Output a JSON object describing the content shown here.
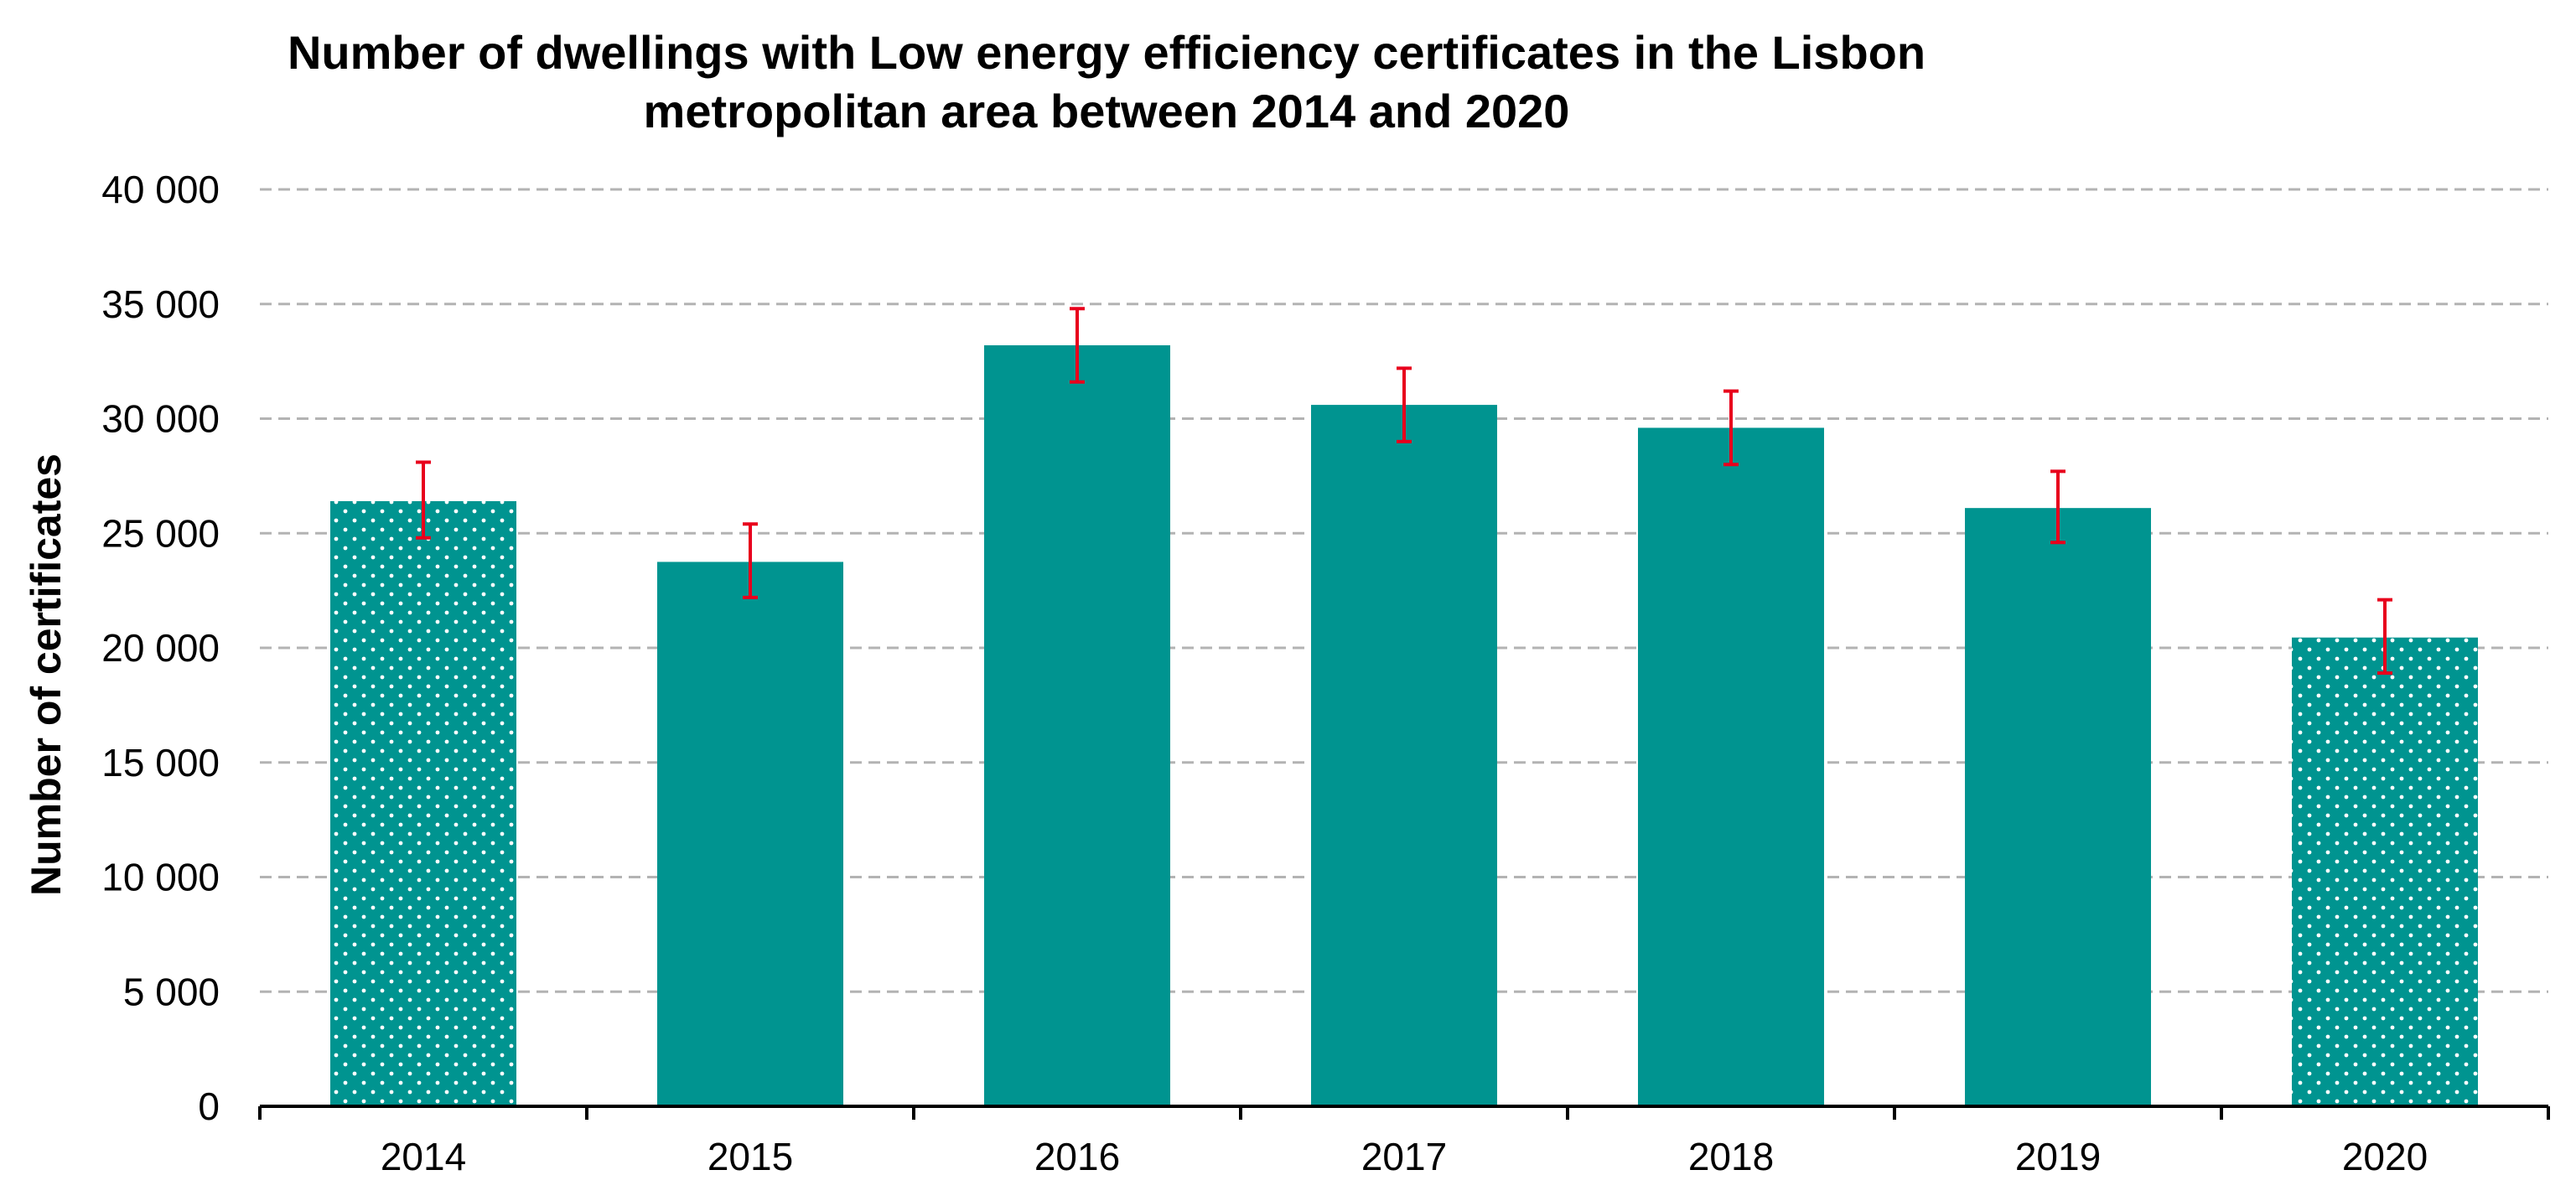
{
  "chart_data": {
    "type": "bar",
    "title_line1": "Number of dwellings with Low energy efficiency certificates in the Lisbon",
    "title_line2": "metropolitan area between 2014 and 2020",
    "title": "Number of dwellings with Low energy efficiency certificates in the Lisbon metropolitan area between 2014 and 2020",
    "xlabel": "",
    "ylabel": "Number of certificates",
    "categories": [
      "2014",
      "2015",
      "2016",
      "2017",
      "2018",
      "2019",
      "2020"
    ],
    "values": [
      26400,
      23750,
      33200,
      30600,
      29600,
      26100,
      20450
    ],
    "error_low": [
      24800,
      22200,
      31600,
      29000,
      28000,
      24600,
      18900
    ],
    "error_high": [
      28100,
      25400,
      34800,
      32200,
      31200,
      27700,
      22100
    ],
    "dotted_pattern": [
      true,
      false,
      false,
      false,
      false,
      false,
      true
    ],
    "ylim": [
      0,
      40000
    ],
    "yticks": [
      0,
      5000,
      10000,
      15000,
      20000,
      25000,
      30000,
      35000,
      40000
    ],
    "ytick_labels": [
      "0",
      "5 000",
      "10 000",
      "15 000",
      "20 000",
      "25 000",
      "30 000",
      "35 000",
      "40 000"
    ],
    "grid": true,
    "grid_style": "dashed",
    "bar_color": "#009490",
    "error_color": "#e8001c",
    "grid_color": "#b3b3b3",
    "axis_color": "#000000"
  }
}
